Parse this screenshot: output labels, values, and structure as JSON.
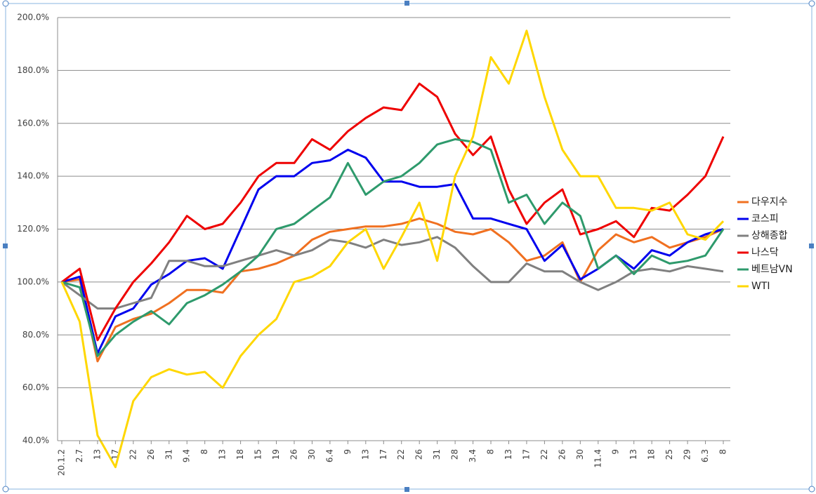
{
  "chart_data": {
    "type": "line",
    "categories": [
      "20.1.2",
      "2.7",
      "13",
      "17",
      "22",
      "26",
      "31",
      "9.4",
      "8",
      "13",
      "18",
      "15",
      "19",
      "26",
      "30",
      "6.4",
      "9",
      "13",
      "17",
      "22",
      "26",
      "31",
      "28",
      "3.4",
      "8",
      "13",
      "17",
      "22",
      "26",
      "30",
      "11.4",
      "9",
      "13",
      "18",
      "25",
      "29",
      "6.3",
      "8"
    ],
    "ylim": [
      40,
      200
    ],
    "yticks": [
      {
        "value": 40,
        "label": "40.0%"
      },
      {
        "value": 60,
        "label": "60.0%"
      },
      {
        "value": 80,
        "label": "80.0%"
      },
      {
        "value": 100,
        "label": "100.0%"
      },
      {
        "value": 120,
        "label": "120.0%"
      },
      {
        "value": 140,
        "label": "140.0%"
      },
      {
        "value": 160,
        "label": "160.0%"
      },
      {
        "value": 180,
        "label": "180.0%"
      },
      {
        "value": 200,
        "label": "200.0%"
      }
    ],
    "grid": true,
    "legend": "right",
    "series": [
      {
        "name": "다우지수",
        "color": "#f07020",
        "values": [
          100,
          101,
          70,
          83,
          86,
          88,
          92,
          97,
          97,
          96,
          104,
          105,
          107,
          110,
          116,
          119,
          120,
          121,
          121,
          122,
          124,
          122,
          119,
          118,
          120,
          115,
          108,
          110,
          115,
          100,
          112,
          118,
          115,
          117,
          113,
          115,
          117,
          120
        ]
      },
      {
        "name": "코스피",
        "color": "#0000ee",
        "values": [
          100,
          102,
          73,
          87,
          90,
          99,
          103,
          108,
          109,
          105,
          120,
          135,
          140,
          140,
          145,
          146,
          150,
          147,
          138,
          138,
          136,
          136,
          137,
          124,
          124,
          122,
          120,
          108,
          114,
          101,
          105,
          110,
          105,
          112,
          110,
          115,
          118,
          120
        ]
      },
      {
        "name": "상해종합",
        "color": "#808080",
        "values": [
          100,
          95,
          90,
          90,
          92,
          94,
          108,
          108,
          106,
          106,
          108,
          110,
          112,
          110,
          112,
          116,
          115,
          113,
          116,
          114,
          115,
          117,
          113,
          106,
          100,
          100,
          107,
          104,
          104,
          100,
          97,
          100,
          104,
          105,
          104,
          106,
          105,
          104
        ]
      },
      {
        "name": "나스닥",
        "color": "#ee0000",
        "values": [
          100,
          105,
          78,
          90,
          100,
          107,
          115,
          125,
          120,
          122,
          130,
          140,
          145,
          145,
          154,
          150,
          157,
          162,
          166,
          165,
          175,
          170,
          156,
          148,
          155,
          135,
          122,
          130,
          135,
          118,
          120,
          123,
          117,
          128,
          127,
          133,
          140,
          155
        ]
      },
      {
        "name": "베트남VN",
        "color": "#2e9a6c",
        "values": [
          100,
          98,
          72,
          80,
          85,
          89,
          84,
          92,
          95,
          99,
          104,
          110,
          120,
          122,
          127,
          132,
          145,
          133,
          138,
          140,
          145,
          152,
          154,
          153,
          150,
          130,
          133,
          122,
          130,
          125,
          105,
          110,
          103,
          110,
          107,
          108,
          110,
          120
        ]
      },
      {
        "name": "WTI",
        "color": "#ffd700",
        "values": [
          100,
          85,
          42,
          30,
          55,
          64,
          67,
          65,
          66,
          60,
          72,
          80,
          86,
          100,
          102,
          106,
          115,
          120,
          105,
          117,
          130,
          108,
          140,
          155,
          185,
          175,
          195,
          170,
          150,
          140,
          140,
          128,
          128,
          127,
          130,
          118,
          116,
          123
        ]
      }
    ]
  }
}
